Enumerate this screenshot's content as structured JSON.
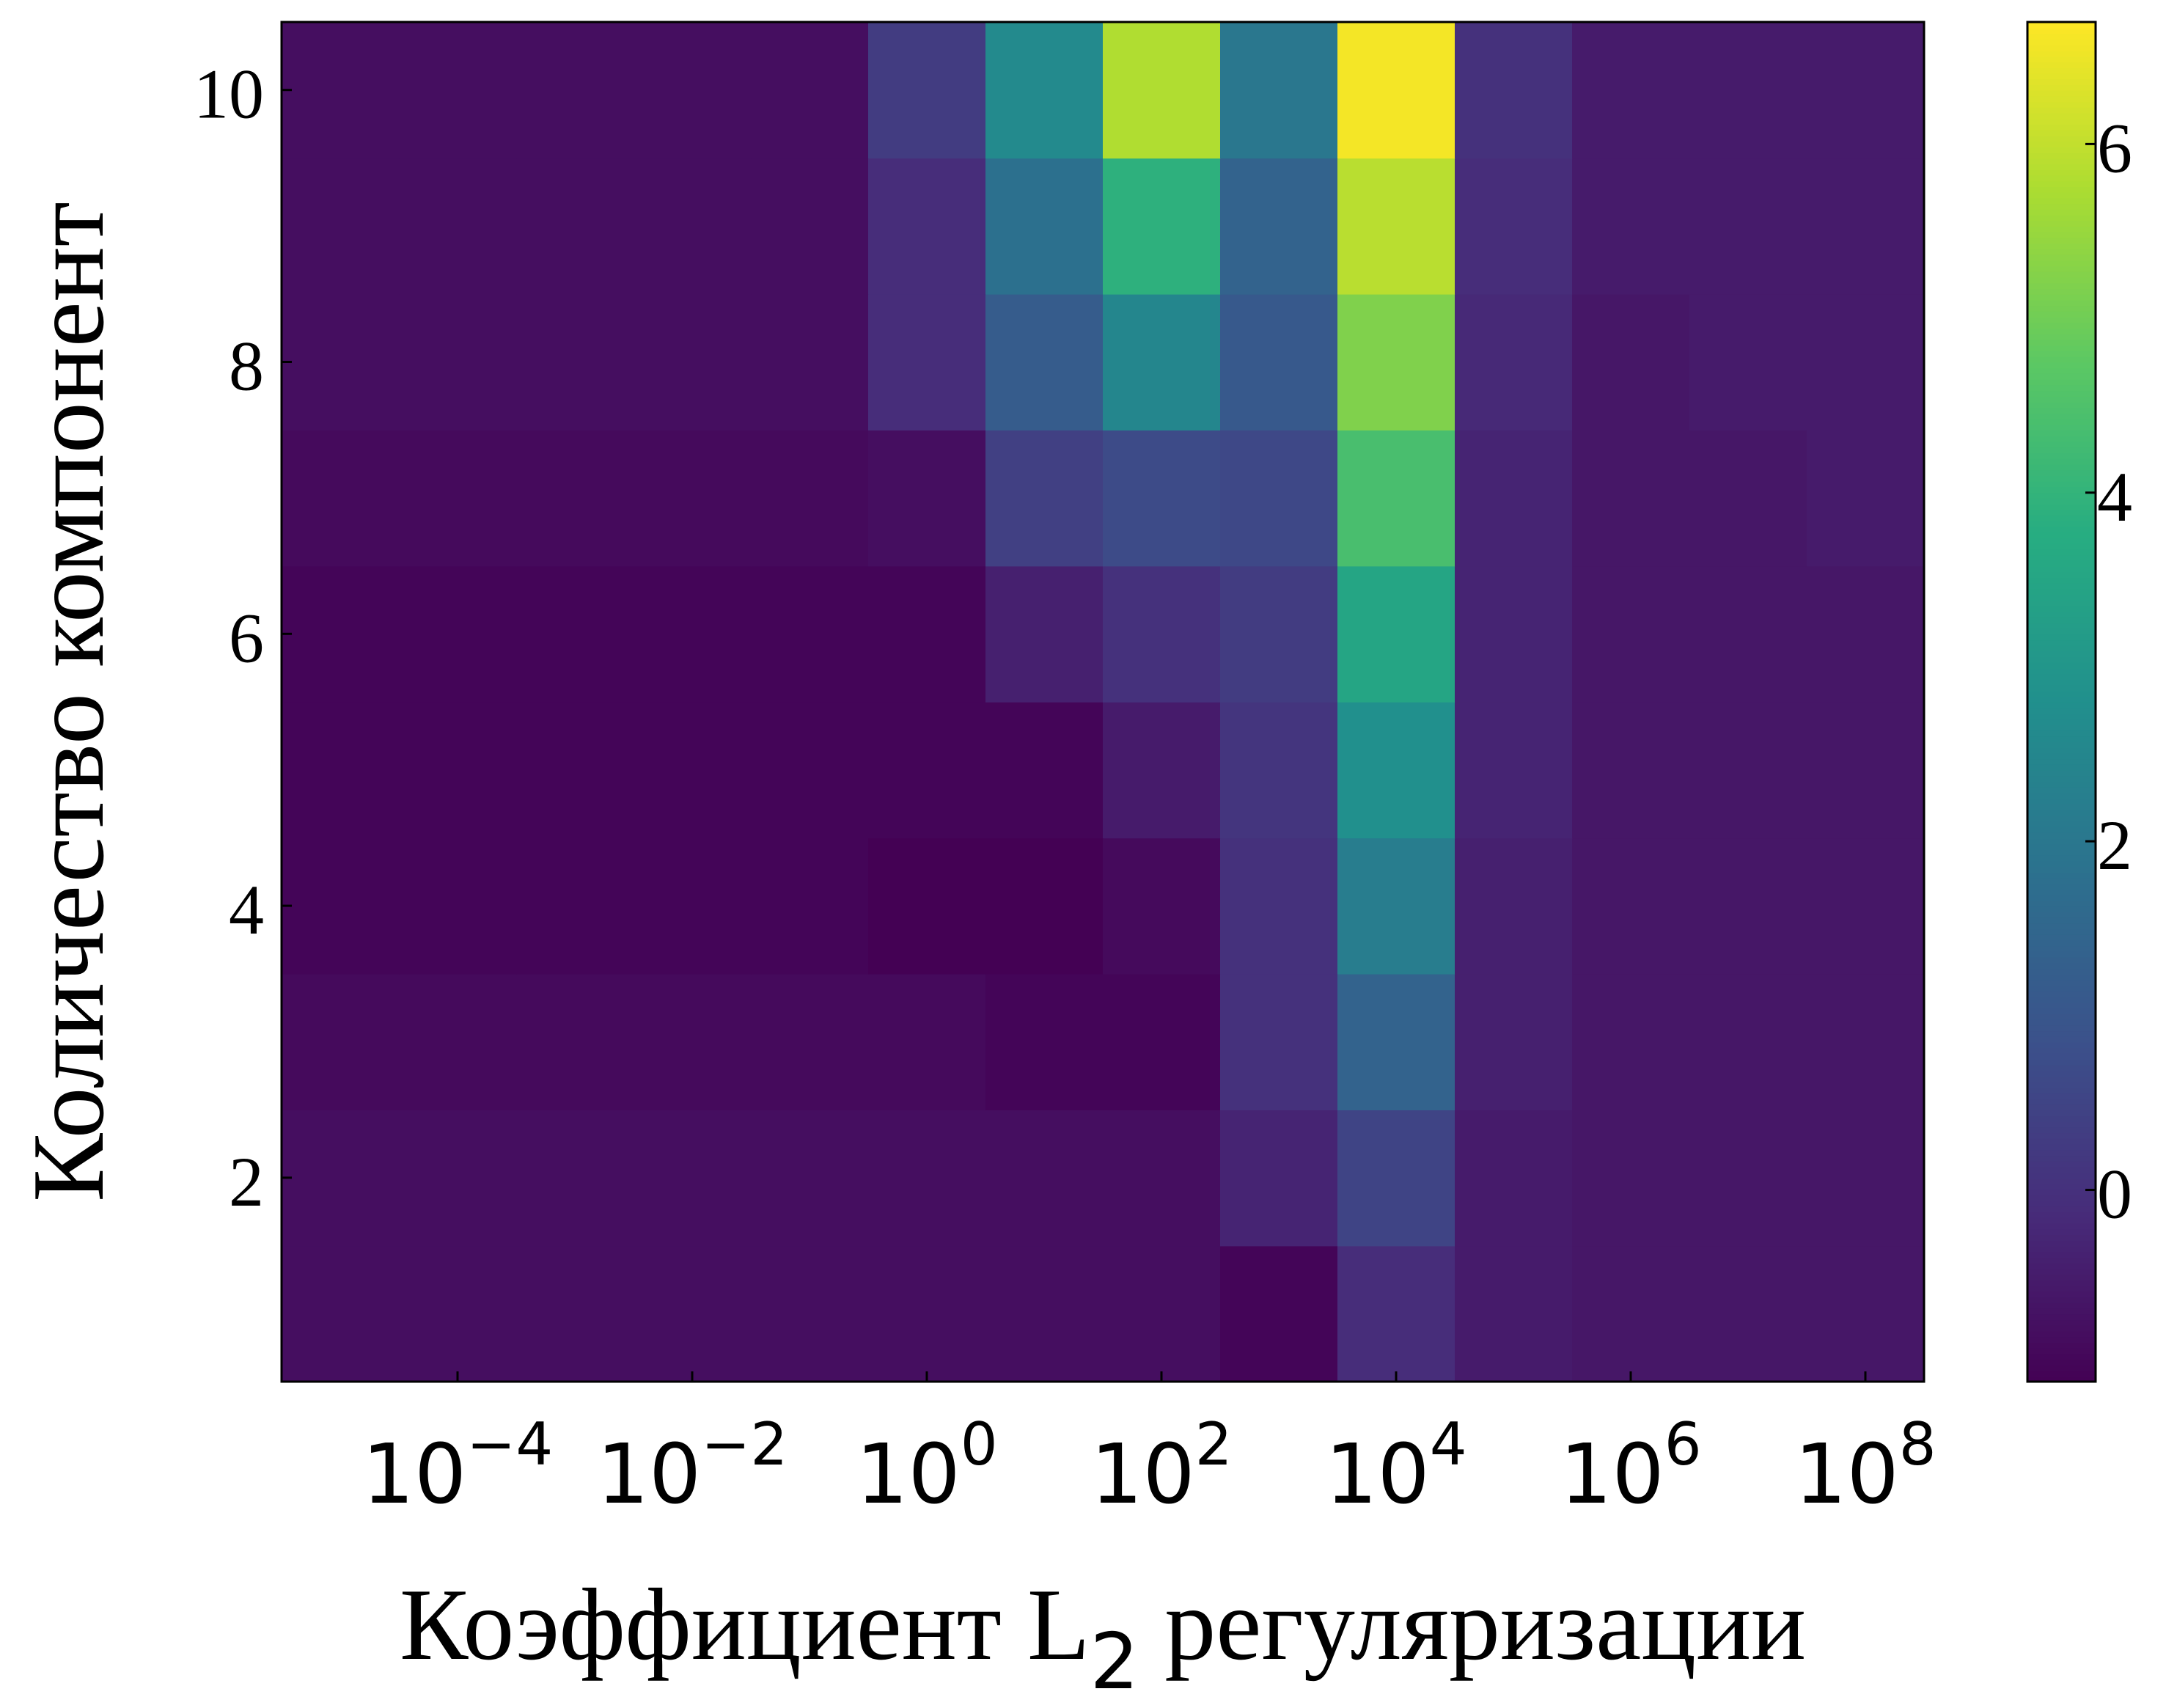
{
  "chart_data": {
    "type": "heatmap",
    "title": "",
    "xlabel": "Коэффициент L",
    "xlabel_subscript": "2",
    "xlabel_suffix": " регуляризации",
    "ylabel": "Количество компонент",
    "x_scale": "log",
    "x_centers_log10": [
      -5,
      -4,
      -3,
      -2,
      -1,
      0,
      1,
      2,
      3,
      4,
      5,
      6,
      7,
      8
    ],
    "xlim_log10": [
      -5.5,
      8.5
    ],
    "x_ticks": [
      {
        "base": "10",
        "exp": "−4",
        "log10": -4
      },
      {
        "base": "10",
        "exp": "−2",
        "log10": -2
      },
      {
        "base": "10",
        "exp": "0",
        "log10": 0
      },
      {
        "base": "10",
        "exp": "2",
        "log10": 2
      },
      {
        "base": "10",
        "exp": "4",
        "log10": 4
      },
      {
        "base": "10",
        "exp": "6",
        "log10": 6
      },
      {
        "base": "10",
        "exp": "8",
        "log10": 8
      }
    ],
    "y_values": [
      1,
      2,
      3,
      4,
      5,
      6,
      7,
      8,
      9,
      10
    ],
    "ylim": [
      0.5,
      10.5
    ],
    "y_ticks": [
      {
        "label": "2",
        "value": 2
      },
      {
        "label": "4",
        "value": 4
      },
      {
        "label": "6",
        "value": 6
      },
      {
        "label": "8",
        "value": 8
      },
      {
        "label": "10",
        "value": 10
      }
    ],
    "colormap": "viridis",
    "color_range": [
      -1.1,
      6.7
    ],
    "colorbar_ticks": [
      {
        "label": "0",
        "value": 0
      },
      {
        "label": "2",
        "value": 2
      },
      {
        "label": "4",
        "value": 4
      },
      {
        "label": "6",
        "value": 6
      }
    ],
    "values": [
      [
        -0.8,
        -0.8,
        -0.8,
        -0.8,
        -0.8,
        -0.8,
        -0.8,
        -0.8,
        -1.0,
        -0.1,
        -0.5,
        -0.6,
        -0.6,
        -0.6
      ],
      [
        -0.8,
        -0.8,
        -0.8,
        -0.8,
        -0.8,
        -0.8,
        -0.8,
        -0.8,
        -0.3,
        0.5,
        -0.5,
        -0.6,
        -0.6,
        -0.6
      ],
      [
        -0.9,
        -0.9,
        -0.9,
        -0.9,
        -0.9,
        -0.9,
        -1.0,
        -1.0,
        0.0,
        1.4,
        -0.4,
        -0.6,
        -0.6,
        -0.6
      ],
      [
        -1.0,
        -1.0,
        -1.0,
        -1.0,
        -1.0,
        -1.1,
        -1.1,
        -0.9,
        0.0,
        2.2,
        -0.4,
        -0.6,
        -0.6,
        -0.6
      ],
      [
        -1.0,
        -1.0,
        -1.0,
        -1.0,
        -1.0,
        -1.0,
        -1.0,
        -0.5,
        0.1,
        2.8,
        -0.3,
        -0.6,
        -0.6,
        -0.6
      ],
      [
        -1.0,
        -1.0,
        -1.0,
        -1.0,
        -1.0,
        -1.0,
        -0.4,
        0.0,
        0.3,
        3.5,
        -0.3,
        -0.6,
        -0.6,
        -0.6
      ],
      [
        -0.9,
        -0.9,
        -0.9,
        -0.9,
        -0.9,
        -0.8,
        0.4,
        0.7,
        0.6,
        4.4,
        -0.3,
        -0.6,
        -0.6,
        -0.5
      ],
      [
        -0.8,
        -0.8,
        -0.8,
        -0.8,
        -0.8,
        -0.1,
        1.2,
        2.5,
        1.1,
        5.2,
        -0.2,
        -0.6,
        -0.5,
        -0.5
      ],
      [
        -0.8,
        -0.8,
        -0.8,
        -0.8,
        -0.8,
        -0.1,
        1.8,
        3.9,
        1.4,
        5.9,
        -0.1,
        -0.5,
        -0.5,
        -0.5
      ],
      [
        -0.8,
        -0.8,
        -0.8,
        -0.8,
        -0.8,
        0.3,
        2.6,
        5.8,
        2.0,
        6.6,
        0.0,
        -0.5,
        -0.5,
        -0.5
      ]
    ],
    "grid": false,
    "legend": "none"
  }
}
